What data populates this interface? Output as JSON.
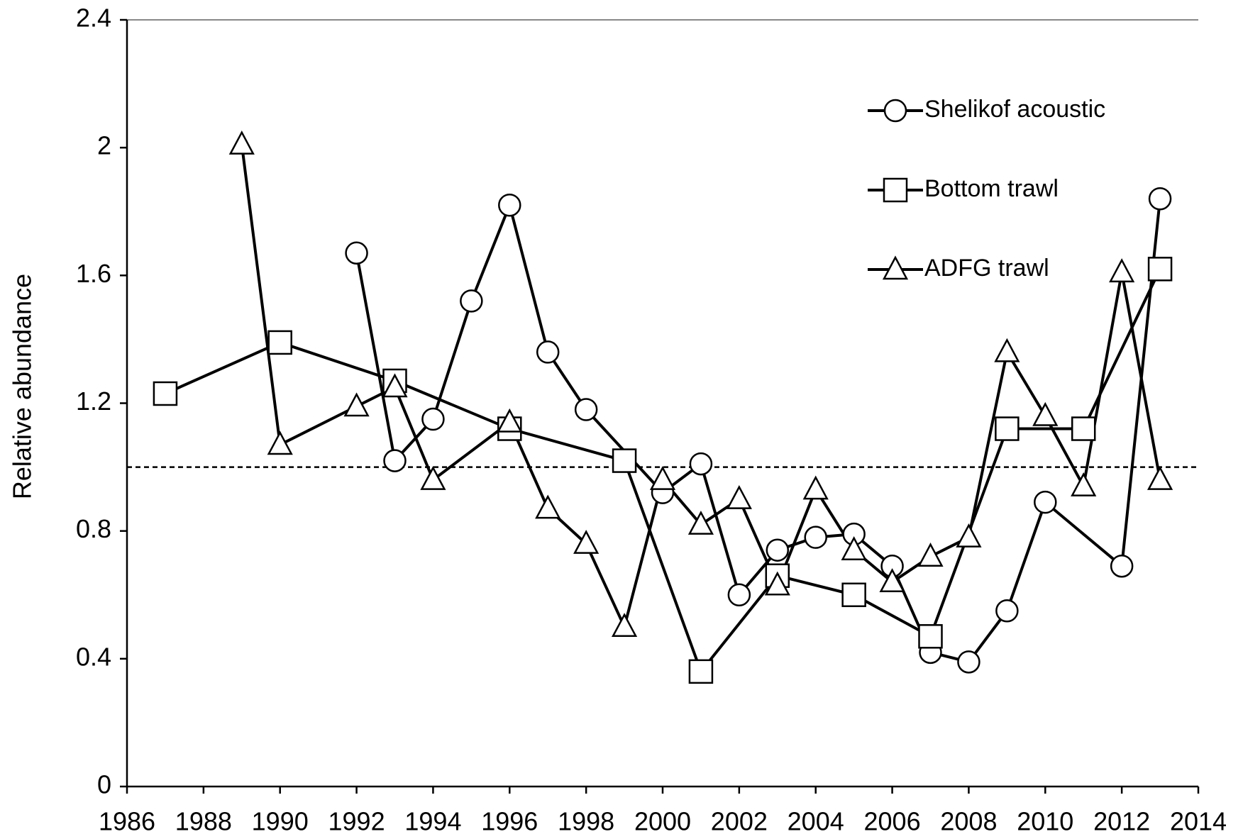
{
  "chart_data": {
    "type": "line",
    "y_label": "Relative abundance",
    "xlim": [
      1986,
      2014
    ],
    "xticks": [
      1986,
      1988,
      1990,
      1992,
      1994,
      1996,
      1998,
      2000,
      2002,
      2004,
      2006,
      2008,
      2010,
      2012,
      2014
    ],
    "ylim": [
      0,
      2.4
    ],
    "yticks": [
      0,
      0.4,
      0.8,
      1.2,
      1.6,
      2,
      2.4
    ],
    "reference_line": 1,
    "legend": "upper right",
    "series": [
      {
        "name": "Shelikof acoustic",
        "color": "#000000",
        "marker": "circle",
        "x": [
          1992,
          1993,
          1994,
          1995,
          1996,
          1997,
          1998,
          2000,
          2001,
          2002,
          2003,
          2004,
          2005,
          2006,
          2007,
          2008,
          2009,
          2010,
          2012,
          2013
        ],
        "values": [
          1.67,
          1.02,
          1.15,
          1.52,
          1.82,
          1.36,
          1.18,
          0.92,
          1.01,
          0.6,
          0.74,
          0.78,
          0.79,
          0.69,
          0.42,
          0.39,
          0.55,
          0.89,
          0.69,
          1.84
        ]
      },
      {
        "name": "Bottom trawl",
        "color": "#000000",
        "marker": "square",
        "x": [
          1987,
          1990,
          1993,
          1996,
          1999,
          2001,
          2003,
          2005,
          2007,
          2009,
          2011,
          2013
        ],
        "values": [
          1.23,
          1.39,
          1.27,
          1.12,
          1.02,
          0.36,
          0.66,
          0.6,
          0.47,
          1.12,
          1.12,
          1.62
        ]
      },
      {
        "name": "ADFG trawl",
        "color": "#000000",
        "marker": "triangle",
        "x": [
          1989,
          1990,
          1992,
          1993,
          1994,
          1996,
          1997,
          1998,
          1999,
          2000,
          2001,
          2002,
          2003,
          2004,
          2005,
          2006,
          2007,
          2008,
          2009,
          2010,
          2011,
          2012,
          2013
        ],
        "values": [
          2.01,
          1.07,
          1.19,
          1.25,
          0.96,
          1.14,
          0.87,
          0.76,
          0.5,
          0.96,
          0.82,
          0.9,
          0.63,
          0.93,
          0.74,
          0.64,
          0.72,
          0.78,
          1.36,
          1.16,
          0.94,
          1.61,
          0.96
        ]
      }
    ]
  }
}
